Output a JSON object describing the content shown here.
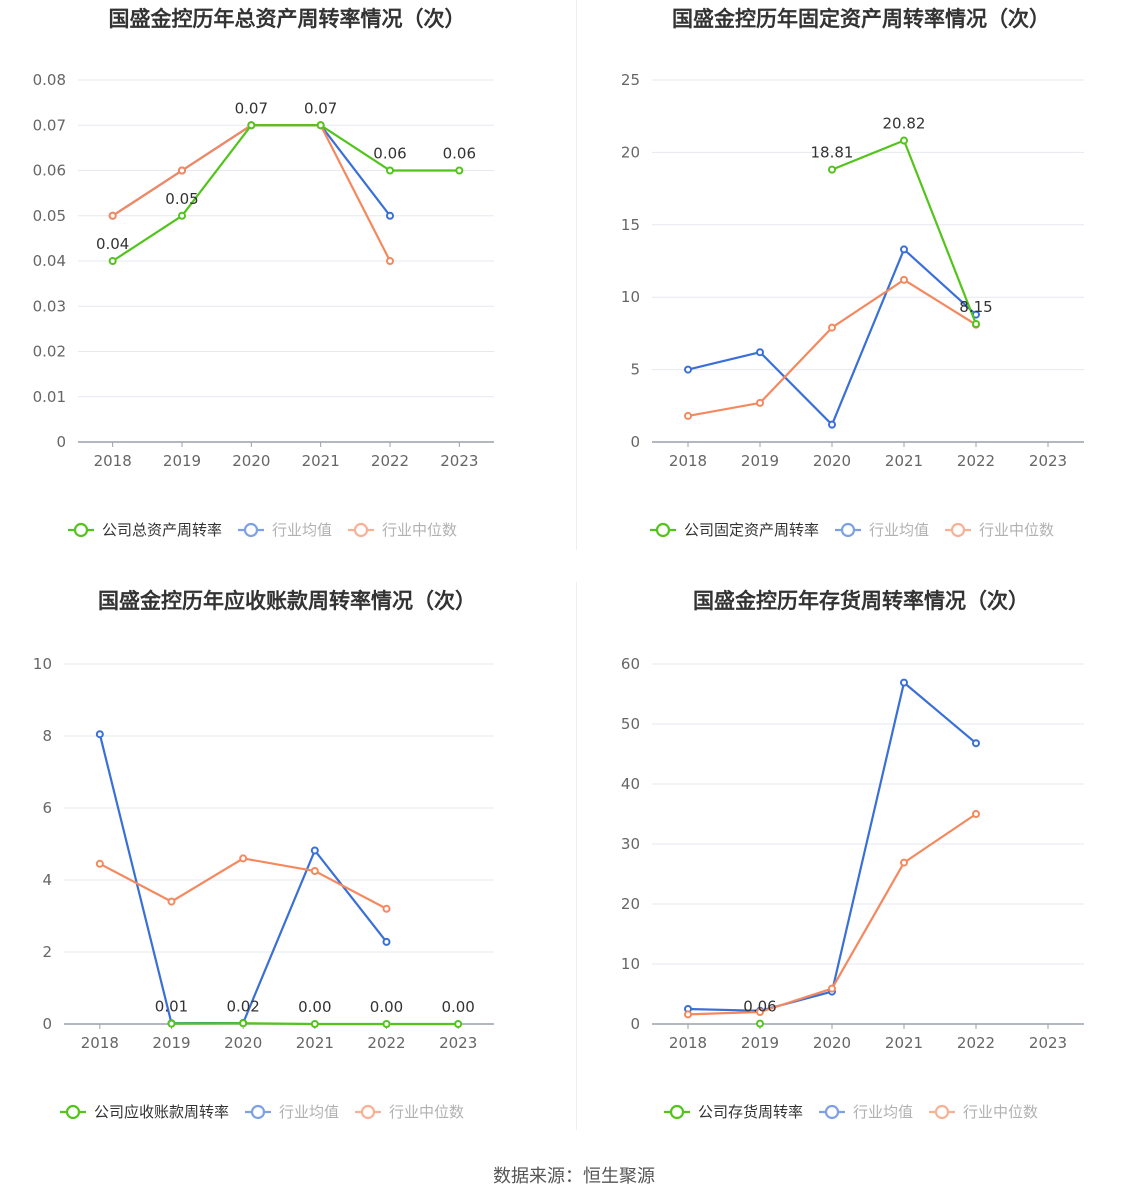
{
  "source": "数据来源：恒生聚源",
  "colors": {
    "company": "#52c41a",
    "average": "#3a6fd8",
    "median": "#f4895f",
    "grid": "#e6e8ef",
    "axis": "#9aa0ac",
    "text": "#666666"
  },
  "chart_data": [
    {
      "type": "line",
      "title": "国盛金控历年总资产周转率情况（次）",
      "categories": [
        "2018",
        "2019",
        "2020",
        "2021",
        "2022",
        "2023"
      ],
      "ylim": [
        0,
        0.08
      ],
      "yticks": [
        "0",
        "0.01",
        "0.02",
        "0.03",
        "0.04",
        "0.05",
        "0.06",
        "0.07",
        "0.08"
      ],
      "series": [
        {
          "name": "公司总资产周转率",
          "values": [
            0.04,
            0.05,
            0.07,
            0.07,
            0.06,
            0.06
          ],
          "labels": [
            "0.04",
            "0.05",
            "0.07",
            "0.07",
            "0.06",
            "0.06"
          ]
        },
        {
          "name": "行业均值",
          "values": [
            0.05,
            0.06,
            0.07,
            0.07,
            0.05,
            null
          ]
        },
        {
          "name": "行业中位数",
          "values": [
            0.05,
            0.06,
            0.07,
            0.07,
            0.04,
            null
          ]
        }
      ]
    },
    {
      "type": "line",
      "title": "国盛金控历年固定资产周转率情况（次）",
      "categories": [
        "2018",
        "2019",
        "2020",
        "2021",
        "2022",
        "2023"
      ],
      "ylim": [
        0,
        25
      ],
      "yticks": [
        "0",
        "5",
        "10",
        "15",
        "20",
        "25"
      ],
      "series": [
        {
          "name": "公司固定资产周转率",
          "values": [
            null,
            null,
            18.81,
            20.82,
            8.15,
            null
          ],
          "labels": [
            null,
            null,
            "18.81",
            "20.82",
            "8.15",
            null
          ]
        },
        {
          "name": "行业均值",
          "values": [
            5.0,
            6.2,
            1.2,
            13.3,
            8.8,
            null
          ]
        },
        {
          "name": "行业中位数",
          "values": [
            1.8,
            2.7,
            7.9,
            11.2,
            8.1,
            null
          ]
        }
      ]
    },
    {
      "type": "line",
      "title": "国盛金控历年应收账款周转率情况（次）",
      "categories": [
        "2018",
        "2019",
        "2020",
        "2021",
        "2022",
        "2023"
      ],
      "ylim": [
        0,
        10
      ],
      "yticks": [
        "0",
        "2",
        "4",
        "6",
        "8",
        "10"
      ],
      "series": [
        {
          "name": "公司应收账款周转率",
          "values": [
            null,
            0.01,
            0.02,
            0.0,
            0.0,
            0.0
          ],
          "labels": [
            null,
            "0.01",
            "0.02",
            "0.00",
            "0.00",
            "0.00"
          ]
        },
        {
          "name": "行业均值",
          "values": [
            8.05,
            0.02,
            0.03,
            4.82,
            2.28,
            null
          ]
        },
        {
          "name": "行业中位数",
          "values": [
            4.45,
            3.4,
            4.6,
            4.25,
            3.2,
            null
          ]
        }
      ]
    },
    {
      "type": "line",
      "title": "国盛金控历年存货周转率情况（次）",
      "categories": [
        "2018",
        "2019",
        "2020",
        "2021",
        "2022",
        "2023"
      ],
      "ylim": [
        0,
        60
      ],
      "yticks": [
        "0",
        "10",
        "20",
        "30",
        "40",
        "50",
        "60"
      ],
      "series": [
        {
          "name": "公司存货周转率",
          "values": [
            null,
            0.06,
            null,
            null,
            null,
            null
          ],
          "labels": [
            null,
            "0.06",
            null,
            null,
            null,
            null
          ]
        },
        {
          "name": "行业均值",
          "values": [
            2.5,
            2.2,
            5.4,
            56.9,
            46.8,
            null
          ]
        },
        {
          "name": "行业中位数",
          "values": [
            1.6,
            2.0,
            5.9,
            26.9,
            35.0,
            null
          ]
        }
      ]
    }
  ]
}
